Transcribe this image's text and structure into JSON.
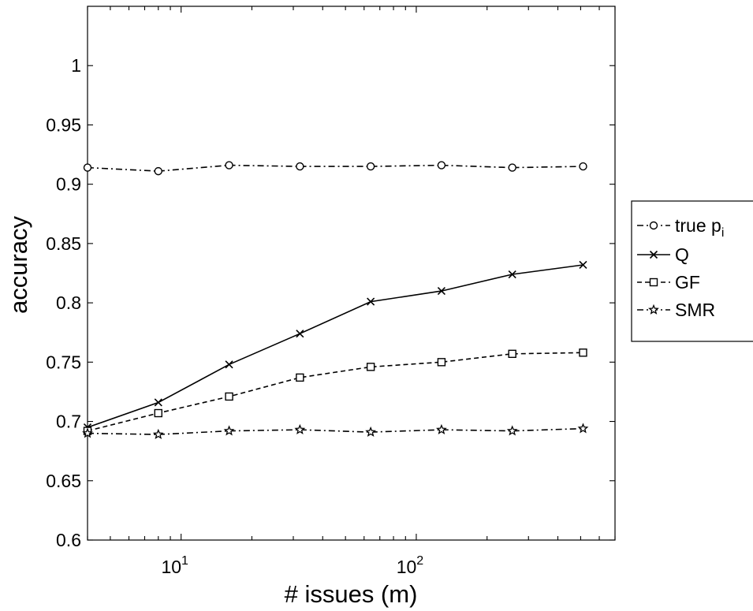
{
  "chart_data": {
    "type": "line",
    "xlabel": "# issues (m)",
    "ylabel": "accuracy",
    "xscale": "log",
    "xlim": [
      4,
      700
    ],
    "ylim": [
      0.6,
      1.05
    ],
    "yticks": [
      0.6,
      0.65,
      0.7,
      0.75,
      0.8,
      0.85,
      0.9,
      0.95,
      1
    ],
    "ytick_labels": [
      "0.6",
      "0.65",
      "0.7",
      "0.75",
      "0.8",
      "0.85",
      "0.9",
      "0.95",
      "1"
    ],
    "xticks": [
      {
        "value": 10,
        "base": "10",
        "exp": "1"
      },
      {
        "value": 100,
        "base": "10",
        "exp": "2"
      }
    ],
    "grid": false,
    "legend_position": "outside right",
    "x": [
      4,
      8,
      16,
      32,
      64,
      128,
      256,
      512
    ],
    "series": [
      {
        "name": "true p",
        "name_subscript": "i",
        "marker": "circle",
        "linestyle": "dashdot",
        "values": [
          0.914,
          0.911,
          0.916,
          0.915,
          0.915,
          0.916,
          0.914,
          0.915
        ]
      },
      {
        "name": "Q",
        "marker": "x",
        "linestyle": "solid",
        "values": [
          0.695,
          0.716,
          0.748,
          0.774,
          0.801,
          0.81,
          0.824,
          0.832
        ]
      },
      {
        "name": "GF",
        "marker": "square",
        "linestyle": "dashed",
        "values": [
          0.692,
          0.707,
          0.721,
          0.737,
          0.746,
          0.75,
          0.757,
          0.758
        ]
      },
      {
        "name": "SMR",
        "marker": "star",
        "linestyle": "dashdot",
        "values": [
          0.69,
          0.689,
          0.692,
          0.693,
          0.691,
          0.693,
          0.692,
          0.694
        ]
      }
    ]
  }
}
